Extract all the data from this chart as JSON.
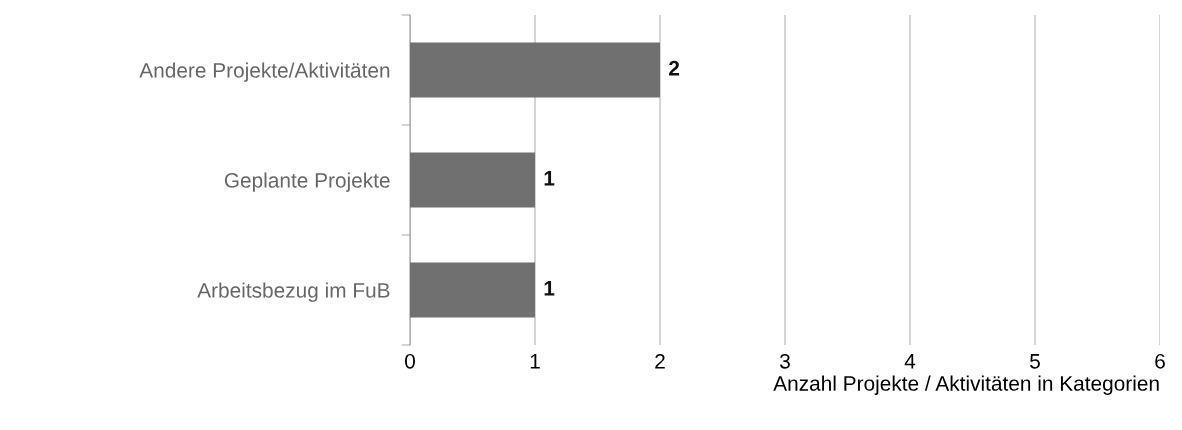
{
  "chart_data": {
    "type": "bar",
    "orientation": "horizontal",
    "categories": [
      "Andere Projekte/Aktivitäten",
      "Geplante Projekte",
      "Arbeitsbezug im FuB"
    ],
    "values": [
      2,
      1,
      1
    ],
    "color": "#707070",
    "xlim": [
      0,
      6
    ],
    "xticks": [
      0,
      1,
      2,
      3,
      4,
      5,
      6
    ],
    "xlabel": "Anzahl Projekte / Aktivitäten in Kategorien",
    "grid": "x",
    "data_labels": true,
    "legend": false
  }
}
